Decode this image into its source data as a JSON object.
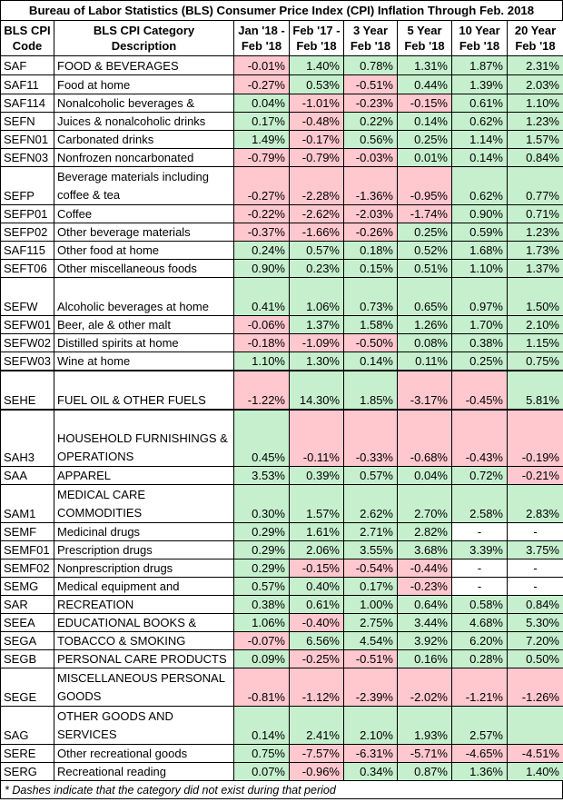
{
  "title": "Bureau of Labor Statistics (BLS) Consumer Price Index (CPI) Inflation Through Feb. 2018",
  "headers": [
    [
      "BLS CPI",
      "Code"
    ],
    [
      "BLS CPI Category",
      "Description"
    ],
    [
      "Jan '18 -",
      "Feb '18"
    ],
    [
      "Feb '17 -",
      "Feb '18"
    ],
    [
      "3 Year",
      "Feb '18"
    ],
    [
      "5 Year",
      "Feb '18"
    ],
    [
      "10 Year",
      "Feb '18"
    ],
    [
      "20 Year",
      "Feb '18"
    ]
  ],
  "rows": [
    {
      "code": "SAF",
      "desc": "FOOD & BEVERAGES",
      "h": 21,
      "vals": [
        "-0.01%",
        "1.40%",
        "0.78%",
        "1.31%",
        "1.87%",
        "2.31%"
      ],
      "cls": [
        "neg",
        "pos",
        "pos",
        "pos",
        "pos",
        "pos"
      ]
    },
    {
      "code": "SAF11",
      "desc": "Food at home",
      "h": 21,
      "vals": [
        "-0.27%",
        "0.53%",
        "-0.51%",
        "0.44%",
        "1.39%",
        "2.03%"
      ],
      "cls": [
        "neg",
        "pos",
        "neg",
        "pos",
        "pos",
        "pos"
      ]
    },
    {
      "code": "SAF114",
      "desc": "Nonalcoholic beverages &",
      "h": 20,
      "vals": [
        "0.04%",
        "-1.01%",
        "-0.23%",
        "-0.15%",
        "0.61%",
        "1.10%"
      ],
      "cls": [
        "pos",
        "neg",
        "neg",
        "neg",
        "pos",
        "pos"
      ]
    },
    {
      "code": "SEFN",
      "desc": "Juices & nonalcoholic drinks",
      "h": 20,
      "vals": [
        "0.17%",
        "-0.48%",
        "0.22%",
        "0.14%",
        "0.62%",
        "1.23%"
      ],
      "cls": [
        "pos",
        "neg",
        "pos",
        "pos",
        "pos",
        "pos"
      ]
    },
    {
      "code": "SEFN01",
      "desc": "Carbonated drinks",
      "h": 20,
      "vals": [
        "1.49%",
        "-0.17%",
        "0.56%",
        "0.25%",
        "1.14%",
        "1.57%"
      ],
      "cls": [
        "pos",
        "neg",
        "pos",
        "pos",
        "pos",
        "pos"
      ]
    },
    {
      "code": "SEFN03",
      "desc": "Nonfrozen noncarbonated",
      "h": 20,
      "vals": [
        "-0.79%",
        "-0.79%",
        "-0.03%",
        "0.01%",
        "0.14%",
        "0.84%"
      ],
      "cls": [
        "neg",
        "neg",
        "neg",
        "pos",
        "pos",
        "pos"
      ]
    },
    {
      "code": "SEFP",
      "desc": "Beverage materials including coffee & tea",
      "h": 42,
      "wrap": true,
      "vals": [
        "-0.27%",
        "-2.28%",
        "-1.36%",
        "-0.95%",
        "0.62%",
        "0.77%"
      ],
      "cls": [
        "neg",
        "neg",
        "neg",
        "neg",
        "pos",
        "pos"
      ]
    },
    {
      "code": "SEFP01",
      "desc": "Coffee",
      "h": 20,
      "vals": [
        "-0.22%",
        "-2.62%",
        "-2.03%",
        "-1.74%",
        "0.90%",
        "0.71%"
      ],
      "cls": [
        "neg",
        "neg",
        "neg",
        "neg",
        "pos",
        "pos"
      ]
    },
    {
      "code": "SEFP02",
      "desc": "Other beverage materials",
      "h": 20,
      "vals": [
        "-0.37%",
        "-1.66%",
        "-0.26%",
        "0.25%",
        "0.59%",
        "1.23%"
      ],
      "cls": [
        "neg",
        "neg",
        "neg",
        "pos",
        "pos",
        "pos"
      ]
    },
    {
      "code": "SAF115",
      "desc": "Other food at home",
      "h": 20,
      "vals": [
        "0.24%",
        "0.57%",
        "0.18%",
        "0.52%",
        "1.68%",
        "1.73%"
      ],
      "cls": [
        "pos",
        "pos",
        "pos",
        "pos",
        "pos",
        "pos"
      ]
    },
    {
      "code": "SEFT06",
      "desc": "Other miscellaneous foods",
      "h": 20,
      "vals": [
        "0.90%",
        "0.23%",
        "0.15%",
        "0.51%",
        "1.10%",
        "1.37%"
      ],
      "cls": [
        "pos",
        "pos",
        "pos",
        "pos",
        "pos",
        "pos"
      ]
    },
    {
      "code": "SEFW",
      "desc": "Alcoholic beverages at home",
      "h": 42,
      "vals": [
        "0.41%",
        "1.06%",
        "0.73%",
        "0.65%",
        "0.97%",
        "1.50%"
      ],
      "cls": [
        "pos",
        "pos",
        "pos",
        "pos",
        "pos",
        "pos"
      ]
    },
    {
      "code": "SEFW01",
      "desc": "Beer, ale & other malt",
      "h": 20,
      "vals": [
        "-0.06%",
        "1.37%",
        "1.58%",
        "1.26%",
        "1.70%",
        "2.10%"
      ],
      "cls": [
        "neg",
        "pos",
        "pos",
        "pos",
        "pos",
        "pos"
      ]
    },
    {
      "code": "SEFW02",
      "desc": "Distilled spirits at home",
      "h": 20,
      "vals": [
        "-0.18%",
        "-1.09%",
        "-0.50%",
        "0.08%",
        "0.38%",
        "1.15%"
      ],
      "cls": [
        "neg",
        "neg",
        "neg",
        "pos",
        "pos",
        "pos"
      ]
    },
    {
      "code": "SEFW03",
      "desc": "Wine at home",
      "h": 20,
      "thick": true,
      "vals": [
        "1.10%",
        "1.30%",
        "0.14%",
        "0.11%",
        "0.25%",
        "0.75%"
      ],
      "cls": [
        "pos",
        "pos",
        "pos",
        "pos",
        "pos",
        "pos"
      ]
    },
    {
      "code": "SEHE",
      "desc": "FUEL OIL & OTHER FUELS",
      "h": 42,
      "thick": true,
      "vals": [
        "-1.22%",
        "14.30%",
        "1.85%",
        "-3.17%",
        "-0.45%",
        "5.81%"
      ],
      "cls": [
        "neg",
        "pos",
        "pos",
        "neg",
        "neg",
        "pos"
      ]
    },
    {
      "code": "SAH3",
      "desc": "HOUSEHOLD FURNISHINGS & OPERATIONS",
      "h": 62,
      "wrap": true,
      "vals": [
        "0.45%",
        "-0.11%",
        "-0.33%",
        "-0.68%",
        "-0.43%",
        "-0.19%"
      ],
      "cls": [
        "pos",
        "neg",
        "neg",
        "neg",
        "neg",
        "neg"
      ]
    },
    {
      "code": "SAA",
      "desc": "APPAREL",
      "h": 20,
      "vals": [
        "3.53%",
        "0.39%",
        "0.57%",
        "0.04%",
        "0.72%",
        "-0.21%"
      ],
      "cls": [
        "pos",
        "pos",
        "pos",
        "pos",
        "pos",
        "neg"
      ]
    },
    {
      "code": "SAM1",
      "desc": "MEDICAL CARE COMMODITIES",
      "h": 42,
      "wrap": true,
      "vals": [
        "0.30%",
        "1.57%",
        "2.62%",
        "2.70%",
        "2.58%",
        "2.83%"
      ],
      "cls": [
        "pos",
        "pos",
        "pos",
        "pos",
        "pos",
        "pos"
      ]
    },
    {
      "code": "SEMF",
      "desc": "Medicinal drugs",
      "h": 20,
      "vals": [
        "0.29%",
        "1.61%",
        "2.71%",
        "2.82%",
        "-",
        "-"
      ],
      "cls": [
        "pos",
        "pos",
        "pos",
        "pos",
        "none",
        "none"
      ]
    },
    {
      "code": "SEMF01",
      "desc": "Prescription drugs",
      "h": 20,
      "vals": [
        "0.29%",
        "2.06%",
        "3.55%",
        "3.68%",
        "3.39%",
        "3.75%"
      ],
      "cls": [
        "pos",
        "pos",
        "pos",
        "pos",
        "pos",
        "pos"
      ]
    },
    {
      "code": "SEMF02",
      "desc": "Nonprescription drugs",
      "h": 20,
      "vals": [
        "0.29%",
        "-0.15%",
        "-0.54%",
        "-0.44%",
        "-",
        "-"
      ],
      "cls": [
        "pos",
        "neg",
        "neg",
        "neg",
        "none",
        "none"
      ]
    },
    {
      "code": "SEMG",
      "desc": "Medical equipment and",
      "h": 20,
      "vals": [
        "0.57%",
        "0.40%",
        "0.17%",
        "-0.23%",
        "-",
        "-"
      ],
      "cls": [
        "pos",
        "pos",
        "pos",
        "neg",
        "none",
        "none"
      ]
    },
    {
      "code": "SAR",
      "desc": "RECREATION",
      "h": 20,
      "vals": [
        "0.38%",
        "0.61%",
        "1.00%",
        "0.64%",
        "0.58%",
        "0.84%"
      ],
      "cls": [
        "pos",
        "pos",
        "pos",
        "pos",
        "pos",
        "pos"
      ]
    },
    {
      "code": "SEEA",
      "desc": "EDUCATIONAL BOOKS &",
      "h": 20,
      "vals": [
        "1.06%",
        "-0.40%",
        "2.75%",
        "3.44%",
        "4.68%",
        "5.30%"
      ],
      "cls": [
        "pos",
        "neg",
        "pos",
        "pos",
        "pos",
        "pos"
      ]
    },
    {
      "code": "SEGA",
      "desc": "TOBACCO & SMOKING",
      "h": 20,
      "vals": [
        "-0.07%",
        "6.56%",
        "4.54%",
        "3.92%",
        "6.20%",
        "7.20%"
      ],
      "cls": [
        "neg",
        "pos",
        "pos",
        "pos",
        "pos",
        "pos"
      ]
    },
    {
      "code": "SEGB",
      "desc": "PERSONAL CARE PRODUCTS",
      "h": 20,
      "vals": [
        "0.09%",
        "-0.25%",
        "-0.51%",
        "0.16%",
        "0.28%",
        "0.50%"
      ],
      "cls": [
        "pos",
        "neg",
        "neg",
        "pos",
        "pos",
        "pos"
      ]
    },
    {
      "code": "SEGE",
      "desc": "MISCELLANEOUS PERSONAL GOODS",
      "h": 42,
      "wrap": true,
      "vals": [
        "-0.81%",
        "-1.12%",
        "-2.39%",
        "-2.02%",
        "-1.21%",
        "-1.26%"
      ],
      "cls": [
        "neg",
        "neg",
        "neg",
        "neg",
        "neg",
        "neg"
      ]
    },
    {
      "code": "SAG",
      "desc": "OTHER GOODS AND SERVICES",
      "h": 42,
      "wrap": true,
      "vals": [
        "0.14%",
        "2.41%",
        "2.10%",
        "1.93%",
        "2.57%",
        ""
      ],
      "cls": [
        "pos",
        "pos",
        "pos",
        "pos",
        "pos",
        "pos"
      ]
    },
    {
      "code": "SERE",
      "desc": "Other recreational goods",
      "h": 20,
      "vals": [
        "0.75%",
        "-7.57%",
        "-6.31%",
        "-5.71%",
        "-4.65%",
        "-4.51%"
      ],
      "cls": [
        "pos",
        "neg",
        "neg",
        "neg",
        "neg",
        "neg"
      ]
    },
    {
      "code": "SERG",
      "desc": "Recreational reading",
      "h": 20,
      "vals": [
        "0.07%",
        "-0.96%",
        "0.34%",
        "0.87%",
        "1.36%",
        "1.40%"
      ],
      "cls": [
        "pos",
        "neg",
        "pos",
        "pos",
        "pos",
        "pos"
      ]
    }
  ],
  "footnote": "* Dashes indicate that the category did not exist during that period"
}
